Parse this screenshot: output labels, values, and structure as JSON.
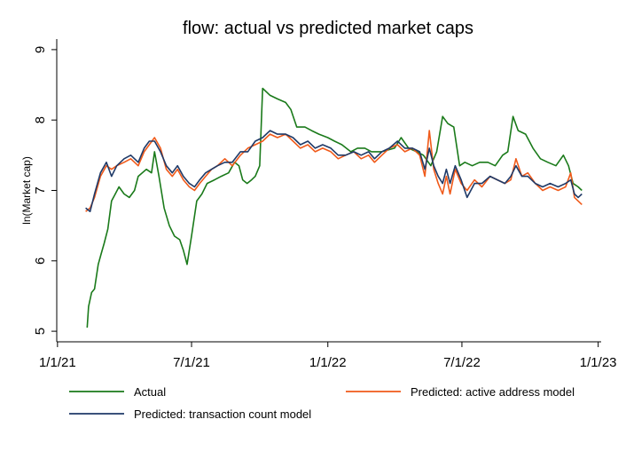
{
  "chart_data": {
    "type": "line",
    "title": "flow: actual vs predicted market caps",
    "xlabel": "",
    "ylabel": "ln(Market cap)",
    "x_ticks": [
      "2021-01-01",
      "2021-07-01",
      "2022-01-01",
      "2022-07-01",
      "2023-01-01"
    ],
    "x_tick_labels": [
      "1/1/21",
      "7/1/21",
      "1/1/22",
      "7/1/22",
      "1/1/23"
    ],
    "y_ticks": [
      5,
      6,
      7,
      8,
      9
    ],
    "y_tick_labels": [
      "5",
      "6",
      "7",
      "8",
      "9"
    ],
    "ylim": [
      4.85,
      9.15
    ],
    "xlim": [
      "2020-12-31",
      "2023-01-05"
    ],
    "grid": false,
    "legend_position": "bottom",
    "series": [
      {
        "name": "Actual",
        "color": "#1a7a1a",
        "points": [
          [
            "2021-02-10",
            5.05
          ],
          [
            "2021-02-12",
            5.35
          ],
          [
            "2021-02-16",
            5.55
          ],
          [
            "2021-02-20",
            5.6
          ],
          [
            "2021-02-25",
            5.95
          ],
          [
            "2021-03-01",
            6.1
          ],
          [
            "2021-03-05",
            6.25
          ],
          [
            "2021-03-10",
            6.45
          ],
          [
            "2021-03-15",
            6.85
          ],
          [
            "2021-03-20",
            6.95
          ],
          [
            "2021-03-25",
            7.05
          ],
          [
            "2021-04-01",
            6.95
          ],
          [
            "2021-04-08",
            6.9
          ],
          [
            "2021-04-15",
            7.0
          ],
          [
            "2021-04-20",
            7.2
          ],
          [
            "2021-05-01",
            7.3
          ],
          [
            "2021-05-08",
            7.25
          ],
          [
            "2021-05-12",
            7.55
          ],
          [
            "2021-05-18",
            7.2
          ],
          [
            "2021-05-25",
            6.75
          ],
          [
            "2021-06-01",
            6.5
          ],
          [
            "2021-06-08",
            6.35
          ],
          [
            "2021-06-15",
            6.3
          ],
          [
            "2021-06-20",
            6.15
          ],
          [
            "2021-06-25",
            5.95
          ],
          [
            "2021-07-01",
            6.35
          ],
          [
            "2021-07-08",
            6.85
          ],
          [
            "2021-07-15",
            6.95
          ],
          [
            "2021-07-22",
            7.1
          ],
          [
            "2021-08-01",
            7.15
          ],
          [
            "2021-08-10",
            7.2
          ],
          [
            "2021-08-20",
            7.25
          ],
          [
            "2021-08-28",
            7.4
          ],
          [
            "2021-09-03",
            7.35
          ],
          [
            "2021-09-08",
            7.15
          ],
          [
            "2021-09-14",
            7.1
          ],
          [
            "2021-09-20",
            7.15
          ],
          [
            "2021-09-25",
            7.2
          ],
          [
            "2021-10-01",
            7.35
          ],
          [
            "2021-10-05",
            8.45
          ],
          [
            "2021-10-15",
            8.35
          ],
          [
            "2021-10-25",
            8.3
          ],
          [
            "2021-11-05",
            8.25
          ],
          [
            "2021-11-12",
            8.15
          ],
          [
            "2021-11-20",
            7.9
          ],
          [
            "2021-12-01",
            7.9
          ],
          [
            "2021-12-10",
            7.85
          ],
          [
            "2021-12-20",
            7.8
          ],
          [
            "2022-01-01",
            7.75
          ],
          [
            "2022-01-10",
            7.7
          ],
          [
            "2022-01-20",
            7.65
          ],
          [
            "2022-02-01",
            7.55
          ],
          [
            "2022-02-10",
            7.6
          ],
          [
            "2022-02-20",
            7.6
          ],
          [
            "2022-03-01",
            7.55
          ],
          [
            "2022-03-15",
            7.55
          ],
          [
            "2022-04-01",
            7.6
          ],
          [
            "2022-04-10",
            7.75
          ],
          [
            "2022-04-20",
            7.6
          ],
          [
            "2022-05-01",
            7.55
          ],
          [
            "2022-05-10",
            7.5
          ],
          [
            "2022-05-20",
            7.35
          ],
          [
            "2022-05-28",
            7.55
          ],
          [
            "2022-06-05",
            8.05
          ],
          [
            "2022-06-12",
            7.95
          ],
          [
            "2022-06-20",
            7.9
          ],
          [
            "2022-06-28",
            7.35
          ],
          [
            "2022-07-05",
            7.4
          ],
          [
            "2022-07-15",
            7.35
          ],
          [
            "2022-07-25",
            7.4
          ],
          [
            "2022-08-05",
            7.4
          ],
          [
            "2022-08-15",
            7.35
          ],
          [
            "2022-08-25",
            7.5
          ],
          [
            "2022-09-01",
            7.55
          ],
          [
            "2022-09-08",
            8.05
          ],
          [
            "2022-09-15",
            7.85
          ],
          [
            "2022-09-25",
            7.8
          ],
          [
            "2022-10-05",
            7.6
          ],
          [
            "2022-10-15",
            7.45
          ],
          [
            "2022-10-25",
            7.4
          ],
          [
            "2022-11-05",
            7.35
          ],
          [
            "2022-11-15",
            7.5
          ],
          [
            "2022-11-22",
            7.35
          ],
          [
            "2022-11-28",
            7.1
          ],
          [
            "2022-12-05",
            7.05
          ],
          [
            "2022-12-10",
            7.0
          ]
        ]
      },
      {
        "name": "Predicted: active address model",
        "color": "#f05a1a",
        "points": [
          [
            "2021-02-08",
            6.7
          ],
          [
            "2021-02-14",
            6.75
          ],
          [
            "2021-02-20",
            6.9
          ],
          [
            "2021-02-28",
            7.2
          ],
          [
            "2021-03-08",
            7.35
          ],
          [
            "2021-03-15",
            7.3
          ],
          [
            "2021-03-22",
            7.35
          ],
          [
            "2021-04-01",
            7.4
          ],
          [
            "2021-04-10",
            7.45
          ],
          [
            "2021-04-20",
            7.35
          ],
          [
            "2021-04-28",
            7.55
          ],
          [
            "2021-05-05",
            7.65
          ],
          [
            "2021-05-12",
            7.75
          ],
          [
            "2021-05-20",
            7.6
          ],
          [
            "2021-05-28",
            7.3
          ],
          [
            "2021-06-05",
            7.2
          ],
          [
            "2021-06-12",
            7.3
          ],
          [
            "2021-06-20",
            7.15
          ],
          [
            "2021-06-28",
            7.05
          ],
          [
            "2021-07-05",
            7.0
          ],
          [
            "2021-07-12",
            7.1
          ],
          [
            "2021-07-20",
            7.2
          ],
          [
            "2021-07-28",
            7.3
          ],
          [
            "2021-08-05",
            7.35
          ],
          [
            "2021-08-15",
            7.45
          ],
          [
            "2021-08-25",
            7.35
          ],
          [
            "2021-09-05",
            7.5
          ],
          [
            "2021-09-15",
            7.6
          ],
          [
            "2021-09-25",
            7.65
          ],
          [
            "2021-10-05",
            7.7
          ],
          [
            "2021-10-15",
            7.8
          ],
          [
            "2021-10-25",
            7.75
          ],
          [
            "2021-11-05",
            7.8
          ],
          [
            "2021-11-15",
            7.7
          ],
          [
            "2021-11-25",
            7.6
          ],
          [
            "2021-12-05",
            7.65
          ],
          [
            "2021-12-15",
            7.55
          ],
          [
            "2021-12-25",
            7.6
          ],
          [
            "2022-01-05",
            7.55
          ],
          [
            "2022-01-15",
            7.45
          ],
          [
            "2022-01-25",
            7.5
          ],
          [
            "2022-02-05",
            7.55
          ],
          [
            "2022-02-15",
            7.45
          ],
          [
            "2022-02-25",
            7.5
          ],
          [
            "2022-03-05",
            7.4
          ],
          [
            "2022-03-15",
            7.5
          ],
          [
            "2022-03-25",
            7.6
          ],
          [
            "2022-04-05",
            7.65
          ],
          [
            "2022-04-15",
            7.55
          ],
          [
            "2022-04-25",
            7.6
          ],
          [
            "2022-05-05",
            7.5
          ],
          [
            "2022-05-12",
            7.2
          ],
          [
            "2022-05-18",
            7.85
          ],
          [
            "2022-05-24",
            7.3
          ],
          [
            "2022-05-30",
            7.1
          ],
          [
            "2022-06-05",
            6.95
          ],
          [
            "2022-06-10",
            7.2
          ],
          [
            "2022-06-15",
            6.95
          ],
          [
            "2022-06-22",
            7.3
          ],
          [
            "2022-06-30",
            7.1
          ],
          [
            "2022-07-08",
            7.0
          ],
          [
            "2022-07-18",
            7.15
          ],
          [
            "2022-07-28",
            7.05
          ],
          [
            "2022-08-08",
            7.2
          ],
          [
            "2022-08-18",
            7.15
          ],
          [
            "2022-08-28",
            7.1
          ],
          [
            "2022-09-05",
            7.15
          ],
          [
            "2022-09-12",
            7.45
          ],
          [
            "2022-09-20",
            7.2
          ],
          [
            "2022-09-28",
            7.25
          ],
          [
            "2022-10-08",
            7.1
          ],
          [
            "2022-10-18",
            7.0
          ],
          [
            "2022-10-28",
            7.05
          ],
          [
            "2022-11-08",
            7.0
          ],
          [
            "2022-11-18",
            7.05
          ],
          [
            "2022-11-25",
            7.25
          ],
          [
            "2022-11-30",
            6.9
          ],
          [
            "2022-12-05",
            6.85
          ],
          [
            "2022-12-10",
            6.8
          ]
        ]
      },
      {
        "name": "Predicted: transaction count model",
        "color": "#1f3a68",
        "points": [
          [
            "2021-02-08",
            6.75
          ],
          [
            "2021-02-14",
            6.7
          ],
          [
            "2021-02-20",
            6.95
          ],
          [
            "2021-02-28",
            7.25
          ],
          [
            "2021-03-08",
            7.4
          ],
          [
            "2021-03-15",
            7.2
          ],
          [
            "2021-03-22",
            7.35
          ],
          [
            "2021-04-01",
            7.45
          ],
          [
            "2021-04-10",
            7.5
          ],
          [
            "2021-04-20",
            7.4
          ],
          [
            "2021-04-28",
            7.6
          ],
          [
            "2021-05-05",
            7.7
          ],
          [
            "2021-05-12",
            7.7
          ],
          [
            "2021-05-20",
            7.55
          ],
          [
            "2021-05-28",
            7.35
          ],
          [
            "2021-06-05",
            7.25
          ],
          [
            "2021-06-12",
            7.35
          ],
          [
            "2021-06-20",
            7.2
          ],
          [
            "2021-06-28",
            7.1
          ],
          [
            "2021-07-05",
            7.05
          ],
          [
            "2021-07-12",
            7.15
          ],
          [
            "2021-07-20",
            7.25
          ],
          [
            "2021-07-28",
            7.3
          ],
          [
            "2021-08-05",
            7.35
          ],
          [
            "2021-08-15",
            7.4
          ],
          [
            "2021-08-25",
            7.4
          ],
          [
            "2021-09-05",
            7.55
          ],
          [
            "2021-09-15",
            7.55
          ],
          [
            "2021-09-25",
            7.7
          ],
          [
            "2021-10-05",
            7.75
          ],
          [
            "2021-10-15",
            7.85
          ],
          [
            "2021-10-25",
            7.8
          ],
          [
            "2021-11-05",
            7.8
          ],
          [
            "2021-11-15",
            7.75
          ],
          [
            "2021-11-25",
            7.65
          ],
          [
            "2021-12-05",
            7.7
          ],
          [
            "2021-12-15",
            7.6
          ],
          [
            "2021-12-25",
            7.65
          ],
          [
            "2022-01-05",
            7.6
          ],
          [
            "2022-01-15",
            7.5
          ],
          [
            "2022-01-25",
            7.5
          ],
          [
            "2022-02-05",
            7.55
          ],
          [
            "2022-02-15",
            7.5
          ],
          [
            "2022-02-25",
            7.55
          ],
          [
            "2022-03-05",
            7.45
          ],
          [
            "2022-03-15",
            7.55
          ],
          [
            "2022-03-25",
            7.6
          ],
          [
            "2022-04-05",
            7.7
          ],
          [
            "2022-04-15",
            7.6
          ],
          [
            "2022-04-25",
            7.6
          ],
          [
            "2022-05-05",
            7.55
          ],
          [
            "2022-05-12",
            7.3
          ],
          [
            "2022-05-18",
            7.6
          ],
          [
            "2022-05-24",
            7.35
          ],
          [
            "2022-05-30",
            7.2
          ],
          [
            "2022-06-05",
            7.1
          ],
          [
            "2022-06-10",
            7.3
          ],
          [
            "2022-06-15",
            7.1
          ],
          [
            "2022-06-22",
            7.35
          ],
          [
            "2022-06-30",
            7.15
          ],
          [
            "2022-07-08",
            6.9
          ],
          [
            "2022-07-18",
            7.1
          ],
          [
            "2022-07-28",
            7.1
          ],
          [
            "2022-08-08",
            7.2
          ],
          [
            "2022-08-18",
            7.15
          ],
          [
            "2022-08-28",
            7.1
          ],
          [
            "2022-09-05",
            7.2
          ],
          [
            "2022-09-12",
            7.35
          ],
          [
            "2022-09-20",
            7.2
          ],
          [
            "2022-09-28",
            7.2
          ],
          [
            "2022-10-08",
            7.1
          ],
          [
            "2022-10-18",
            7.05
          ],
          [
            "2022-10-28",
            7.1
          ],
          [
            "2022-11-08",
            7.05
          ],
          [
            "2022-11-18",
            7.1
          ],
          [
            "2022-11-25",
            7.15
          ],
          [
            "2022-11-30",
            6.95
          ],
          [
            "2022-12-05",
            6.9
          ],
          [
            "2022-12-10",
            6.95
          ]
        ]
      }
    ]
  }
}
